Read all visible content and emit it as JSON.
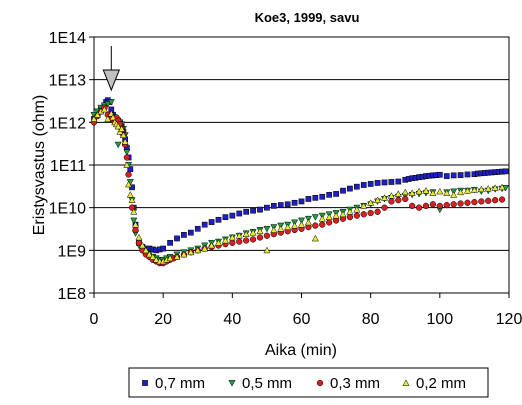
{
  "chart_data": {
    "type": "scatter",
    "title": "Koe3, 1999, savu",
    "xlabel": "Aika (min)",
    "ylabel": "Eristysvastus (ohm)",
    "xlim": [
      0,
      120
    ],
    "ylim": [
      100000000.0,
      100000000000000.0
    ],
    "yscale": "log",
    "x_ticks": [
      "0",
      "20",
      "40",
      "60",
      "80",
      "100",
      "120"
    ],
    "y_ticks": [
      "1E8",
      "1E9",
      "1E10",
      "1E11",
      "1E12",
      "1E13",
      "1E14"
    ],
    "grid": "horizontal",
    "legend_position": "bottom",
    "annotation": "arrow-at-x-5",
    "annotation_x": 5,
    "series": [
      {
        "name": "0,7 mm",
        "marker": "square",
        "color": "#1f1fbf",
        "x": [
          0,
          1,
          2,
          3,
          3.5,
          4,
          4.5,
          5,
          5.5,
          6,
          6.5,
          7,
          7.5,
          8,
          8.5,
          9,
          9.5,
          10,
          10.5,
          11,
          11.5,
          12,
          13,
          14,
          15,
          16,
          17,
          18,
          19,
          20,
          22,
          24,
          26,
          28,
          30,
          32,
          34,
          36,
          38,
          40,
          42,
          44,
          46,
          48,
          50,
          52,
          54,
          56,
          58,
          60,
          62,
          64,
          66,
          68,
          70,
          72,
          74,
          76,
          78,
          80,
          82,
          84,
          86,
          88,
          90,
          91,
          92,
          93,
          94,
          95,
          96,
          97,
          98,
          99,
          100,
          102,
          104,
          106,
          108,
          110,
          111,
          112,
          113,
          114,
          115,
          116,
          117,
          118,
          119
        ],
        "y": [
          1200000000000.0,
          1500000000000.0,
          2000000000000.0,
          2500000000000.0,
          3000000000000.0,
          3300000000000.0,
          3000000000000.0,
          2000000000000.0,
          1500000000000.0,
          1300000000000.0,
          1200000000000.0,
          1100000000000.0,
          1000000000000.0,
          800000000000.0,
          600000000000.0,
          400000000000.0,
          250000000000.0,
          150000000000.0,
          80000000000.0,
          30000000000.0,
          10000000000.0,
          4000000000.0,
          1500000000.0,
          1200000000.0,
          1100000000.0,
          1100000000.0,
          1050000000.0,
          1000000000.0,
          1050000000.0,
          1100000000.0,
          1500000000.0,
          1900000000.0,
          2300000000.0,
          2600000000.0,
          3200000000.0,
          4000000000.0,
          4600000000.0,
          5200000000.0,
          6000000000.0,
          6500000000.0,
          7300000000.0,
          8000000000.0,
          8500000000.0,
          9000000000.0,
          10000000000.0,
          11000000000.0,
          11500000000.0,
          12000000000.0,
          13000000000.0,
          14000000000.0,
          16000000000.0,
          17000000000.0,
          18000000000.0,
          20000000000.0,
          21000000000.0,
          25000000000.0,
          28000000000.0,
          31000000000.0,
          34000000000.0,
          36000000000.0,
          38000000000.0,
          39000000000.0,
          40000000000.0,
          41000000000.0,
          45000000000.0,
          47000000000.0,
          49000000000.0,
          50000000000.0,
          52000000000.0,
          53000000000.0,
          55000000000.0,
          56000000000.0,
          57000000000.0,
          58000000000.0,
          59000000000.0,
          55000000000.0,
          57000000000.0,
          58000000000.0,
          60000000000.0,
          61000000000.0,
          63000000000.0,
          64000000000.0,
          65000000000.0,
          66000000000.0,
          67000000000.0,
          68000000000.0,
          69000000000.0,
          70000000000.0,
          71000000000.0
        ]
      },
      {
        "name": "0,5 mm",
        "marker": "triangle-down",
        "color": "#1f9f3f",
        "x": [
          0,
          1,
          2,
          3,
          4,
          5,
          6,
          7,
          7.5,
          8,
          8.5,
          9,
          9.5,
          10,
          10.5,
          11,
          11.5,
          12,
          13,
          14,
          15,
          16,
          17,
          18,
          19,
          20,
          21,
          22,
          24,
          26,
          28,
          30,
          32,
          34,
          36,
          38,
          40,
          42,
          44,
          46,
          48,
          50,
          52,
          54,
          56,
          58,
          60,
          62,
          64,
          66,
          68,
          70,
          72,
          74,
          76,
          78,
          80,
          82,
          84,
          86,
          88,
          90,
          92,
          94,
          96,
          98,
          100,
          102,
          104,
          106,
          108,
          110,
          112,
          114,
          116,
          118,
          119
        ],
        "y": [
          1500000000000.0,
          1800000000000.0,
          2200000000000.0,
          2500000000000.0,
          2700000000000.0,
          3000000000000.0,
          1200000000000.0,
          300000000000.0,
          1000000000000.0,
          900000000000.0,
          700000000000.0,
          500000000000.0,
          200000000000.0,
          100000000000.0,
          40000000000.0,
          15000000000.0,
          5000000000.0,
          2500000000.0,
          1300000000.0,
          1000000000.0,
          900000000.0,
          800000000.0,
          700000000.0,
          650000000.0,
          600000000.0,
          600000000.0,
          650000000.0,
          700000000.0,
          800000000.0,
          900000000.0,
          1000000000.0,
          1100000000.0,
          1300000000.0,
          1500000000.0,
          1600000000.0,
          1800000000.0,
          2000000000.0,
          2200000000.0,
          2500000000.0,
          2700000000.0,
          3000000000.0,
          3200000000.0,
          3500000000.0,
          3800000000.0,
          4000000000.0,
          4500000000.0,
          5000000000.0,
          5500000000.0,
          6000000000.0,
          6500000000.0,
          7000000000.0,
          7500000000.0,
          8000000000.0,
          9000000000.0,
          10000000000.0,
          11000000000.0,
          12000000000.0,
          14000000000.0,
          16000000000.0,
          17000000000.0,
          18000000000.0,
          19000000000.0,
          20000000000.0,
          21000000000.0,
          22000000000.0,
          23000000000.0,
          9000000000.0,
          23000000000.0,
          24000000000.0,
          25000000000.0,
          25000000000.0,
          26000000000.0,
          24000000000.0,
          25000000000.0,
          27000000000.0,
          28000000000.0,
          29000000000.0
        ]
      },
      {
        "name": "0,3 mm",
        "marker": "circle",
        "color": "#d42020",
        "x": [
          0,
          1,
          2,
          3,
          4,
          5,
          6,
          6.5,
          7,
          7.5,
          8,
          8.5,
          9,
          9.5,
          10,
          11,
          12,
          13,
          14,
          15,
          16,
          17,
          18,
          19,
          20,
          21,
          22,
          23,
          24,
          26,
          28,
          30,
          32,
          34,
          36,
          38,
          40,
          42,
          44,
          46,
          48,
          50,
          52,
          54,
          56,
          58,
          60,
          62,
          64,
          66,
          68,
          70,
          72,
          74,
          76,
          78,
          80,
          82,
          84,
          86,
          88,
          90,
          92,
          94,
          96,
          98,
          100,
          102,
          104,
          106,
          108,
          110,
          112,
          114,
          116,
          118
        ],
        "y": [
          1000000000000.0,
          1400000000000.0,
          1800000000000.0,
          2200000000000.0,
          1500000000000.0,
          1200000000000.0,
          1000000000000.0,
          1300000000000.0,
          1100000000000.0,
          900000000000.0,
          700000000000.0,
          500000000000.0,
          300000000000.0,
          150000000000.0,
          60000000000.0,
          10000000000.0,
          3000000000.0,
          1500000000.0,
          1000000000.0,
          800000000.0,
          700000000.0,
          600000000.0,
          550000000.0,
          500000000.0,
          500000000.0,
          550000000.0,
          600000000.0,
          650000000.0,
          700000000.0,
          800000000.0,
          900000000.0,
          1000000000.0,
          1100000000.0,
          1200000000.0,
          1300000000.0,
          1400000000.0,
          1500000000.0,
          1600000000.0,
          1700000000.0,
          1800000000.0,
          2000000000.0,
          2200000000.0,
          2400000000.0,
          2600000000.0,
          2800000000.0,
          3000000000.0,
          3200000000.0,
          3500000000.0,
          3800000000.0,
          4000000000.0,
          4500000000.0,
          5000000000.0,
          5500000000.0,
          6000000000.0,
          6500000000.0,
          7000000000.0,
          7500000000.0,
          8000000000.0,
          10000000000.0,
          14000000000.0,
          15000000000.0,
          16000000000.0,
          11000000000.0,
          10000000000.0,
          11000000000.0,
          12000000000.0,
          11000000000.0,
          11500000000.0,
          12000000000.0,
          12500000000.0,
          13000000000.0,
          13500000000.0,
          14000000000.0,
          14500000000.0,
          15000000000.0,
          15500000000.0
        ]
      },
      {
        "name": "0,2 mm",
        "marker": "triangle-up",
        "color": "#e8e83a",
        "x": [
          0,
          1,
          2,
          3,
          4,
          5,
          5.5,
          6,
          6.5,
          7,
          7.5,
          8,
          8.5,
          9,
          9.5,
          10,
          10.5,
          11,
          11.5,
          12,
          13,
          14,
          15,
          16,
          17,
          18,
          19,
          20,
          21,
          22,
          24,
          26,
          28,
          30,
          32,
          34,
          36,
          38,
          40,
          42,
          44,
          46,
          48,
          50,
          52,
          54,
          56,
          58,
          60,
          62,
          64,
          66,
          68,
          70,
          72,
          74,
          76,
          78,
          80,
          82,
          84,
          86,
          88,
          90,
          92,
          94,
          96,
          98,
          100,
          102,
          104,
          106,
          108,
          110,
          112,
          114,
          116,
          118
        ],
        "y": [
          1200000000000.0,
          1500000000000.0,
          1800000000000.0,
          2000000000000.0,
          1200000000000.0,
          1600000000000.0,
          1300000000000.0,
          1000000000000.0,
          900000000000.0,
          800000000000.0,
          600000000000.0,
          700000000000.0,
          500000000000.0,
          350000000000.0,
          100000000000.0,
          35000000000.0,
          20000000000.0,
          15000000000.0,
          8000000000.0,
          4000000000.0,
          2000000000.0,
          1300000000.0,
          1000000000.0,
          800000000.0,
          700000000.0,
          600000000.0,
          550000000.0,
          550000000.0,
          600000000.0,
          650000000.0,
          700000000.0,
          800000000.0,
          900000000.0,
          1000000000.0,
          1100000000.0,
          1300000000.0,
          1500000000.0,
          1700000000.0,
          2000000000.0,
          2200000000.0,
          2400000000.0,
          2600000000.0,
          2800000000.0,
          1000000000.0,
          3000000000.0,
          3200000000.0,
          3500000000.0,
          3800000000.0,
          4000000000.0,
          4500000000.0,
          1900000000.0,
          5500000000.0,
          6000000000.0,
          6500000000.0,
          7000000000.0,
          8000000000.0,
          9000000000.0,
          11000000000.0,
          13000000000.0,
          15000000000.0,
          17000000000.0,
          19000000000.0,
          21000000000.0,
          23000000000.0,
          22000000000.0,
          24000000000.0,
          25000000000.0,
          22000000000.0,
          24000000000.0,
          22000000000.0,
          20000000000.0,
          23000000000.0,
          25000000000.0,
          26000000000.0,
          27000000000.0,
          28000000000.0,
          29000000000.0,
          30000000000.0
        ]
      }
    ]
  }
}
